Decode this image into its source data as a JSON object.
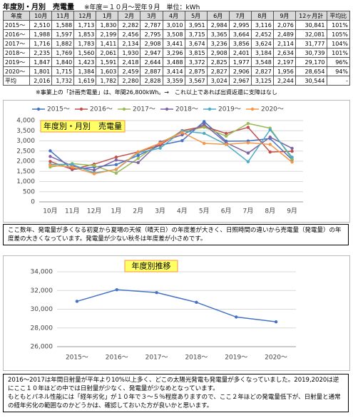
{
  "header": {
    "title": "年度別・月別　売電量",
    "note": "※年度＝１０月～翌年９月　単位：kWh"
  },
  "table": {
    "header": [
      "年度",
      "10月",
      "11月",
      "12月",
      "1月",
      "2月",
      "3月",
      "4月",
      "5月",
      "6月",
      "7月",
      "8月",
      "9月",
      "12ヶ月計",
      "平均比"
    ],
    "rows": [
      [
        "2015～",
        "2,510",
        "1,588",
        "1,713",
        "1,830",
        "2,282",
        "2,787",
        "3,010",
        "3,951",
        "2,984",
        "2,995",
        "3,116",
        "2,076",
        "30,841",
        "101%"
      ],
      [
        "2016～",
        "1,988",
        "1,597",
        "1,853",
        "2,199",
        "2,456",
        "2,795",
        "3,508",
        "3,715",
        "3,365",
        "3,664",
        "2,452",
        "2,489",
        "32,081",
        "105%"
      ],
      [
        "2017～",
        "1,716",
        "1,882",
        "1,783",
        "1,411",
        "2,134",
        "2,908",
        "3,441",
        "3,674",
        "3,236",
        "3,856",
        "3,624",
        "2,114",
        "31,777",
        "104%"
      ],
      [
        "2018～",
        "2,235",
        "1,769",
        "1,560",
        "2,061",
        "1,930",
        "2,947",
        "3,296",
        "3,815",
        "2,908",
        "2,401",
        "3,184",
        "2,634",
        "30,739",
        "101%"
      ],
      [
        "2019～",
        "1,847",
        "1,840",
        "1,423",
        "1,591",
        "2,418",
        "2,644",
        "3,488",
        "3,372",
        "2,825",
        "1,977",
        "3,548",
        "2,197",
        "29,170",
        "96%"
      ],
      [
        "2020～",
        "1,801",
        "1,715",
        "1,384",
        "1,603",
        "2,459",
        "2,887",
        "3,414",
        "2,875",
        "2,827",
        "2,906",
        "2,827",
        "1,956",
        "28,654",
        "94%"
      ],
      [
        "平均",
        "2,016",
        "1,732",
        "1,619",
        "1,782",
        "2,280",
        "2,828",
        "3,359",
        "3,567",
        "3,024",
        "2,967",
        "3,125",
        "2,244",
        "30,544",
        "-"
      ]
    ]
  },
  "footnote": "※事業上の「計画売電量」は、年間26,800kWh。→　これ以上であれば出資返還に支障はなし",
  "chart_data": [
    {
      "type": "line",
      "title": "年度別・月別　売電量",
      "categories": [
        "10月",
        "11月",
        "12月",
        "1月",
        "2月",
        "3月",
        "4月",
        "5月",
        "6月",
        "7月",
        "8月",
        "9月"
      ],
      "series": [
        {
          "name": "2015～",
          "color": "#4472c4",
          "values": [
            2510,
            1588,
            1713,
            1830,
            2282,
            2787,
            3010,
            3951,
            2984,
            2995,
            3116,
            2076
          ]
        },
        {
          "name": "2016～",
          "color": "#c0504d",
          "values": [
            1988,
            1597,
            1853,
            2199,
            2456,
            2795,
            3508,
            3715,
            3365,
            3664,
            2452,
            2489
          ]
        },
        {
          "name": "2017～",
          "color": "#9bbb59",
          "values": [
            1716,
            1882,
            1783,
            1411,
            2134,
            2908,
            3441,
            3674,
            3236,
            3856,
            3624,
            2114
          ]
        },
        {
          "name": "2018～",
          "color": "#8064a2",
          "values": [
            2235,
            1769,
            1560,
            2061,
            1930,
            2947,
            3296,
            3815,
            2908,
            2401,
            3184,
            2634
          ]
        },
        {
          "name": "2019～",
          "color": "#4bacc6",
          "values": [
            1847,
            1840,
            1423,
            1591,
            2418,
            2644,
            3488,
            3372,
            2825,
            1977,
            3548,
            2197
          ]
        },
        {
          "name": "2020～",
          "color": "#f79646",
          "values": [
            1801,
            1715,
            1384,
            1603,
            2459,
            2887,
            3414,
            2875,
            2827,
            2906,
            2827,
            1956
          ]
        }
      ],
      "ylim": [
        0,
        4000
      ],
      "yticks": [
        0,
        500,
        {
          "value": 1000,
          "label": "1,000"
        },
        {
          "value": 1500,
          "label": "1,500"
        },
        {
          "value": 2000,
          "label": "2,000"
        },
        {
          "value": 2500,
          "label": "2,500"
        },
        {
          "value": 3000,
          "label": "3,000"
        },
        {
          "value": 3500,
          "label": "3,500"
        },
        {
          "value": 4000,
          "label": "4,000"
        }
      ],
      "grid": true
    },
    {
      "type": "line",
      "title": "年度別推移",
      "categories": [
        "2015～",
        "2016～",
        "2017～",
        "2018～",
        "2019～",
        "2020～"
      ],
      "series": [
        {
          "name": "12ヶ月計",
          "color": "#4472c4",
          "values": [
            30841,
            32081,
            31777,
            30739,
            29170,
            28654
          ]
        }
      ],
      "ylim": [
        26000,
        34000
      ],
      "yticks": [
        {
          "value": 26000,
          "label": "26,000"
        },
        {
          "value": 28000,
          "label": "28,000"
        },
        {
          "value": 30000,
          "label": "30,000"
        },
        {
          "value": 32000,
          "label": "32,000"
        },
        {
          "value": 34000,
          "label": "34,000"
        }
      ],
      "grid": true
    }
  ],
  "comment1": "ここ数年、発電量が多くなる初夏から夏場の天候（晴天日）の年度差が大きく、日照時間の違いから売電量（発電量）の年度差の大きくなっています。発電量が少ない秋冬は年度差が小さめです。",
  "comment2": [
    "2016～2017は年間日射量が平年より10%以上多く、どこの太陽光発電も発電量が多くなっていました。2019,2020は逆にここ１０年ほどの中では日射量が少なく、発電量が少なめとなっています。",
    "もともとパネル性能には「経年劣化」が１０年で３～５％程度ありますので、ここ２年ほどの発電量低下が、日射量と通常の経年劣化の範囲なのかどうかは、確認しておいた方が良いかと思います。"
  ]
}
